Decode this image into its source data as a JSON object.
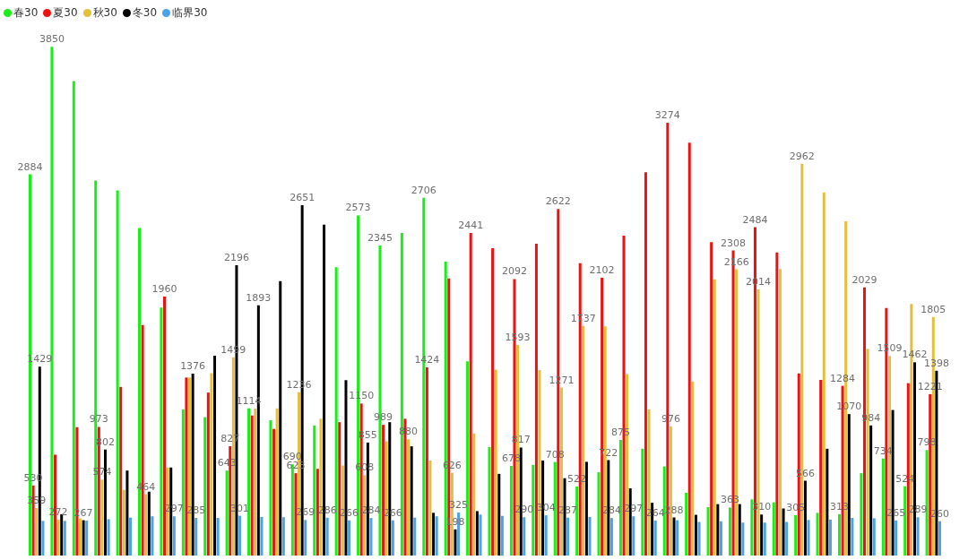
{
  "chart_data": {
    "type": "bar",
    "legend": "top left",
    "categories": [
      null,
      null,
      null,
      null,
      null,
      null,
      null,
      null,
      null,
      null,
      null,
      null,
      null,
      null,
      null,
      null,
      null,
      null,
      null,
      null,
      null,
      null,
      null,
      null,
      null,
      null,
      null,
      null,
      null,
      null,
      null,
      null,
      null,
      null,
      null,
      null,
      null,
      null,
      null,
      null,
      null,
      null
    ],
    "series": [
      {
        "name": "春30",
        "color": "#1aee1a",
        "values": [
          2884,
          3850,
          3589,
          2837,
          2763,
          2478,
          1876,
          1106,
          1047,
          643,
          1114,
          1024,
          690,
          984,
          2181,
          2573,
          2345,
          2440,
          2706,
          2224,
          1469,
          821,
          678,
          686,
          708,
          522,
          630,
          875,
          808,
          674,
          475,
          366,
          363,
          425,
          402,
          305,
          323,
          313,
          623,
          734,
          524,
          798
        ],
        "value_labels": [
          "2884",
          "3850",
          null,
          null,
          null,
          null,
          null,
          null,
          null,
          "643",
          "1114",
          null,
          "690",
          null,
          null,
          "2573",
          "2345",
          null,
          "2706",
          null,
          null,
          null,
          "678",
          null,
          "708",
          "522",
          null,
          "875",
          null,
          null,
          null,
          null,
          "363",
          null,
          null,
          "305",
          null,
          "313",
          null,
          "734",
          "524",
          "798"
        ]
      },
      {
        "name": "夏30",
        "color": "#ee1111",
        "values": [
          530,
          763,
          971,
          973,
          1276,
          1744,
          1960,
          1347,
          1233,
          827,
          1060,
          958,
          623,
          656,
          1009,
          1150,
          989,
          1035,
          1424,
          2097,
          2441,
          2326,
          2092,
          2359,
          2622,
          2212,
          2102,
          2420,
          2900,
          3274,
          3124,
          2372,
          2308,
          2484,
          2293,
          1378,
          1329,
          1284,
          2029,
          1873,
          1304,
          1221
        ],
        "value_labels": [
          "530",
          null,
          null,
          "973",
          null,
          null,
          "1960",
          null,
          null,
          "827",
          null,
          null,
          "623",
          null,
          null,
          "1150",
          "989",
          null,
          "1424",
          null,
          "2441",
          null,
          "2092",
          null,
          "2622",
          null,
          "2102",
          null,
          null,
          "3274",
          null,
          null,
          "2308",
          "2484",
          null,
          null,
          null,
          "1284",
          "2029",
          null,
          null,
          "1221"
        ]
      },
      {
        "name": "秋30",
        "color": "#e5be3c",
        "values": [
          359,
          272,
          280,
          574,
          496,
          464,
          666,
          1347,
          1380,
          1499,
          1111,
          1113,
          1236,
          1035,
          681,
          608,
          864,
          880,
          719,
          626,
          923,
          1406,
          1593,
          1403,
          1271,
          1737,
          1734,
          1373,
          1106,
          976,
          1317,
          2090,
          2166,
          2014,
          2168,
          2962,
          2748,
          2529,
          1563,
          1509,
          1904,
          1805
        ],
        "value_labels": [
          "359",
          "272",
          null,
          "574",
          null,
          "464",
          null,
          null,
          null,
          "1499",
          null,
          null,
          "1236",
          null,
          null,
          "608",
          null,
          "880",
          null,
          "626",
          null,
          null,
          "1593",
          null,
          "1271",
          "1737",
          null,
          null,
          null,
          "976",
          null,
          null,
          "2166",
          "2014",
          null,
          "2962",
          null,
          null,
          null,
          "1509",
          null,
          "1805"
        ]
      },
      {
        "name": "冬30",
        "color": "#000000",
        "values": [
          1429,
          313,
          267,
          802,
          643,
          483,
          666,
          1376,
          1512,
          2196,
          1893,
          2077,
          2651,
          2504,
          1327,
          855,
          1009,
          826,
          323,
          198,
          336,
          618,
          817,
          719,
          585,
          709,
          722,
          508,
          399,
          288,
          308,
          389,
          389,
          310,
          356,
          566,
          808,
          1070,
          984,
          1101,
          1462,
          1398
        ],
        "value_labels": [
          "1429",
          null,
          "267",
          "802",
          null,
          null,
          null,
          "1376",
          null,
          "2196",
          "1893",
          null,
          "2651",
          null,
          null,
          "855",
          null,
          null,
          null,
          "198",
          null,
          null,
          "817",
          null,
          null,
          null,
          "722",
          null,
          null,
          "288",
          null,
          null,
          null,
          "310",
          null,
          "566",
          null,
          "1070",
          "984",
          null,
          "1462",
          "1398"
        ]
      },
      {
        "name": "临界30",
        "color": "#4aa3e8",
        "values": [
          262,
          262,
          264,
          275,
          287,
          297,
          297,
          285,
          285,
          301,
          292,
          290,
          269,
          286,
          266,
          284,
          266,
          287,
          297,
          325,
          310,
          300,
          290,
          304,
          287,
          292,
          284,
          297,
          264,
          267,
          254,
          259,
          249,
          249,
          254,
          269,
          272,
          285,
          282,
          265,
          289,
          260
        ],
        "value_labels": [
          null,
          null,
          null,
          null,
          null,
          null,
          "297",
          "285",
          null,
          "301",
          null,
          null,
          "269",
          "286",
          "266",
          "284",
          "266",
          null,
          null,
          "325",
          null,
          null,
          "290",
          "304",
          "287",
          null,
          "284",
          "297",
          "264",
          null,
          null,
          null,
          null,
          null,
          null,
          null,
          null,
          null,
          null,
          "265",
          "289",
          "260"
        ]
      }
    ]
  }
}
